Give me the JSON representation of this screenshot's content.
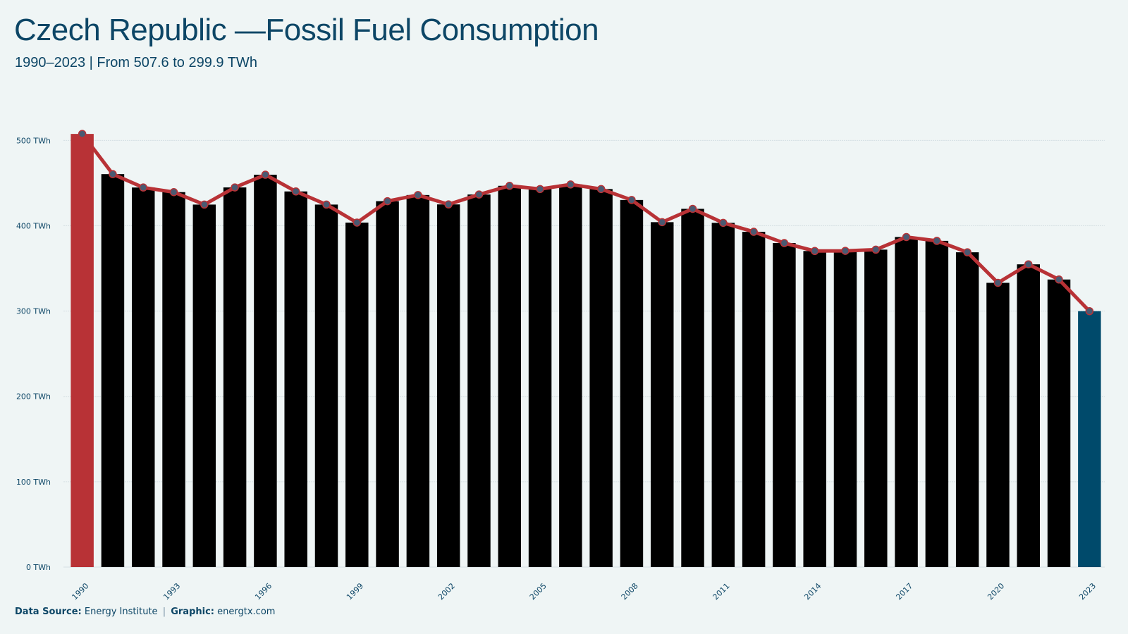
{
  "header": {
    "title": "Czech Republic —Fossil Fuel Consumption",
    "subtitle": "1990–2023 | From 507.6 to 299.9 TWh"
  },
  "footer": {
    "source_label": "Data Source:",
    "source_value": "Energy Institute",
    "separator": "|",
    "graphic_label": "Graphic:",
    "graphic_value": "energtx.com"
  },
  "colors": {
    "background": "#eff5f5",
    "start_bar": "#b83236",
    "end_bar": "#004a6b",
    "line": "#b83236",
    "marker_fill": "#4a5a72",
    "text": "#0d4666",
    "grid": "#d5e0e3"
  },
  "chart_data": {
    "type": "bar",
    "unit": "TWh",
    "x": [
      1990,
      1991,
      1992,
      1993,
      1994,
      1995,
      1996,
      1997,
      1998,
      1999,
      2000,
      2001,
      2002,
      2003,
      2004,
      2005,
      2006,
      2007,
      2008,
      2009,
      2010,
      2011,
      2012,
      2013,
      2014,
      2015,
      2016,
      2017,
      2018,
      2019,
      2020,
      2021,
      2022,
      2023
    ],
    "values": [
      507.6,
      460.5,
      444.8,
      439.4,
      424.8,
      444.9,
      459.8,
      440.2,
      424.8,
      403.7,
      428.8,
      436.0,
      425.0,
      436.6,
      446.8,
      443.0,
      448.4,
      443.0,
      430.2,
      404.2,
      419.8,
      403.4,
      392.9,
      379.7,
      370.4,
      370.6,
      372.0,
      386.8,
      382.3,
      368.9,
      333.1,
      354.8,
      337.0,
      299.9
    ],
    "x_tick_labels": [
      "1990",
      "1993",
      "1996",
      "1999",
      "2002",
      "2005",
      "2008",
      "2011",
      "2014",
      "2017",
      "2020",
      "2023"
    ],
    "y_tick_labels": [
      "0 TWh",
      "100 TWh",
      "200 TWh",
      "300 TWh",
      "400 TWh",
      "500 TWh"
    ],
    "y_ticks": [
      0,
      100,
      200,
      300,
      400,
      500
    ],
    "ylim": [
      0,
      500
    ],
    "overlay": "line-with-markers",
    "grid": true,
    "legend": "none"
  }
}
